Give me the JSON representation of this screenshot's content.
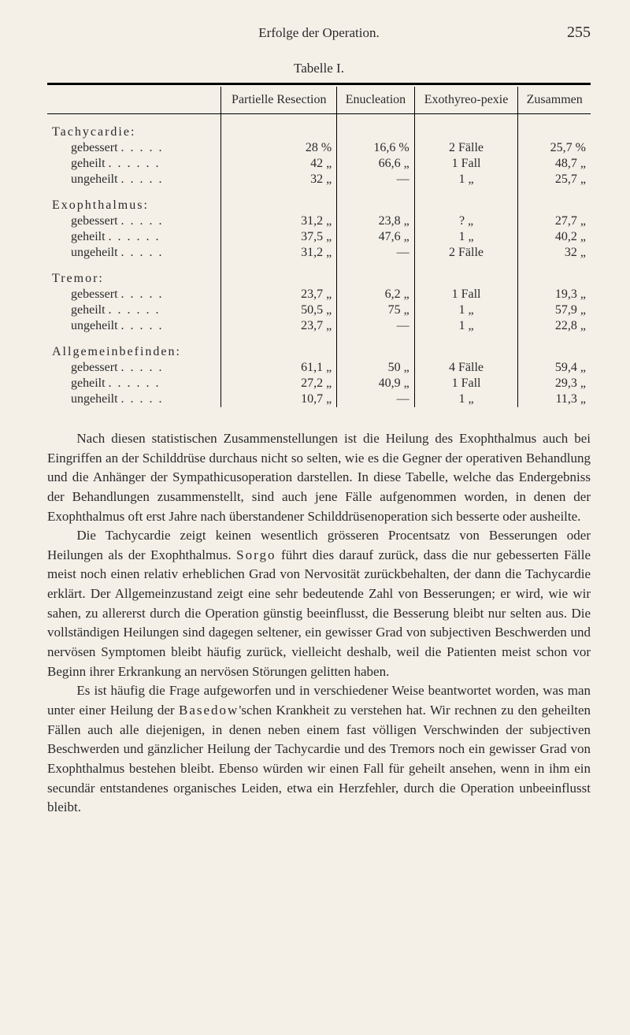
{
  "page": {
    "running_head": "Erfolge der Operation.",
    "page_number": "255"
  },
  "table": {
    "caption": "Tabelle I.",
    "columns": {
      "c1": "Partielle Resection",
      "c2": "Enucleation",
      "c3": "Exothyreo-pexie",
      "c4": "Zusammen"
    },
    "groups": [
      {
        "label": "Tachycardie:",
        "rows": [
          {
            "label": "gebessert . . . . .",
            "c1": "28   %",
            "c2": "16,6 %",
            "c3": "2 Fälle",
            "c4": "25,7 %"
          },
          {
            "label": "geheilt . . . . . .",
            "c1": "42   „",
            "c2": "66,6 „",
            "c3": "1 Fall",
            "c4": "48,7 „"
          },
          {
            "label": "ungeheilt . . . . .",
            "c1": "32   „",
            "c2": "—",
            "c3": "1   „",
            "c4": "25,7 „"
          }
        ]
      },
      {
        "label": "Exophthalmus:",
        "rows": [
          {
            "label": "gebessert . . . . .",
            "c1": "31,2 „",
            "c2": "23,8 „",
            "c3": "?   „",
            "c4": "27,7 „"
          },
          {
            "label": "geheilt . . . . . .",
            "c1": "37,5 „",
            "c2": "47,6 „",
            "c3": "1   „",
            "c4": "40,2 „"
          },
          {
            "label": "ungeheilt . . . . .",
            "c1": "31,2 „",
            "c2": "—",
            "c3": "2 Fälle",
            "c4": "32   „"
          }
        ]
      },
      {
        "label": "Tremor:",
        "rows": [
          {
            "label": "gebessert . . . . .",
            "c1": "23,7 „",
            "c2": "6,2 „",
            "c3": "1 Fall",
            "c4": "19,3 „"
          },
          {
            "label": "geheilt . . . . . .",
            "c1": "50,5 „",
            "c2": "75   „",
            "c3": "1   „",
            "c4": "57,9 „"
          },
          {
            "label": "ungeheilt . . . . .",
            "c1": "23,7 „",
            "c2": "—",
            "c3": "1   „",
            "c4": "22,8 „"
          }
        ]
      },
      {
        "label": "Allgemeinbefinden:",
        "rows": [
          {
            "label": "gebessert . . . . .",
            "c1": "61,1 „",
            "c2": "50   „",
            "c3": "4 Fälle",
            "c4": "59,4 „"
          },
          {
            "label": "geheilt . . . . . .",
            "c1": "27,2 „",
            "c2": "40,9 „",
            "c3": "1 Fall",
            "c4": "29,3 „"
          },
          {
            "label": "ungeheilt . . . . .",
            "c1": "10,7 „",
            "c2": "—",
            "c3": "1   „",
            "c4": "11,3 „"
          }
        ]
      }
    ]
  },
  "body": {
    "p1a": "Nach diesen statistischen Zusammenstellungen ist die Heilung des Exophthalmus auch bei Eingriffen an der Schilddrüse durchaus nicht so selten, wie es die Gegner der operativen Behandlung und die Anhänger der Sympathicusoperation darstellen. In diese Tabelle, welche das Endergebniss der Behandlungen zusammenstellt, sind auch jene Fälle aufgenommen worden, in denen der Exophthalmus oft erst Jahre nach überstandener Schilddrüsenoperation sich besserte oder ausheilte.",
    "p2_pre": "Die Tachycardie zeigt keinen wesentlich grösseren Procentsatz von Besserungen oder Heilungen als der Exophthalmus. ",
    "p2_sorgo": "Sorgo",
    "p2_post": " führt dies darauf zurück, dass die nur gebesserten Fälle meist noch einen relativ erheblichen Grad von Nervosität zurückbehalten, der dann die Tachycardie erklärt. Der Allgemeinzustand zeigt eine sehr bedeutende Zahl von Besserungen; er wird, wie wir sahen, zu allererst durch die Operation günstig beeinflusst, die Besserung bleibt nur selten aus. Die vollständigen Heilungen sind dagegen seltener, ein gewisser Grad von subjectiven Beschwerden und nervösen Symptomen bleibt häufig zu­rück, vielleicht deshalb, weil die Patienten meist schon vor Beginn ihrer Erkrankung an nervösen Störungen gelitten haben.",
    "p3_pre": "Es ist häufig die Frage aufgeworfen und in verschiedener Weise beantwortet worden, was man unter einer Heilung der ",
    "p3_basedow": "Basedow",
    "p3_post": "'schen Krankheit zu verstehen hat. Wir rechnen zu den geheilten Fällen auch alle diejenigen, in denen neben einem fast völligen Verschwinden der subjectiven Beschwerden und gänzlicher Heilung der Tachycardie und des Tremors noch ein gewisser Grad von Exophthalmus bestehen bleibt. Ebenso würden wir einen Fall für geheilt ansehen, wenn in ihm ein secundär entstandenes organisches Leiden, etwa ein Herzfehler, durch die Operation unbeeinflusst bleibt."
  }
}
